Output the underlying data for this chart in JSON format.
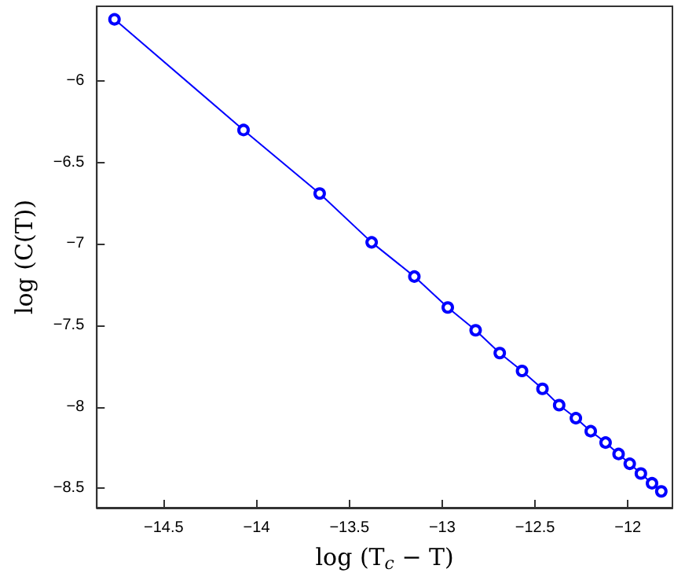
{
  "chart_data": {
    "type": "line",
    "xlabel": "log (T$_{c}$ − T)",
    "ylabel": "log (C(T))",
    "x": [
      -14.765,
      -14.07,
      -13.66,
      -13.38,
      -13.15,
      -12.97,
      -12.82,
      -12.69,
      -12.57,
      -12.46,
      -12.37,
      -12.28,
      -12.2,
      -12.12,
      -12.05,
      -11.99,
      -11.93,
      -11.87,
      -11.82
    ],
    "series": [
      {
        "color": "#0000ff",
        "values": [
          -5.62,
          -6.3,
          -6.69,
          -6.99,
          -7.2,
          -7.39,
          -7.53,
          -7.67,
          -7.78,
          -7.89,
          -7.99,
          -8.07,
          -8.15,
          -8.22,
          -8.29,
          -8.35,
          -8.41,
          -8.47,
          -8.52
        ]
      }
    ],
    "xlim": [
      -14.86,
      -11.76
    ],
    "ylim": [
      -8.62,
      -5.54
    ],
    "xticks": [
      -14.5,
      -14,
      -13.5,
      -13,
      -12.5,
      -12
    ],
    "yticks": [
      -8.5,
      -8,
      -7.5,
      -7,
      -6.5,
      -6
    ],
    "marker": "circle",
    "line_style": "solid"
  }
}
